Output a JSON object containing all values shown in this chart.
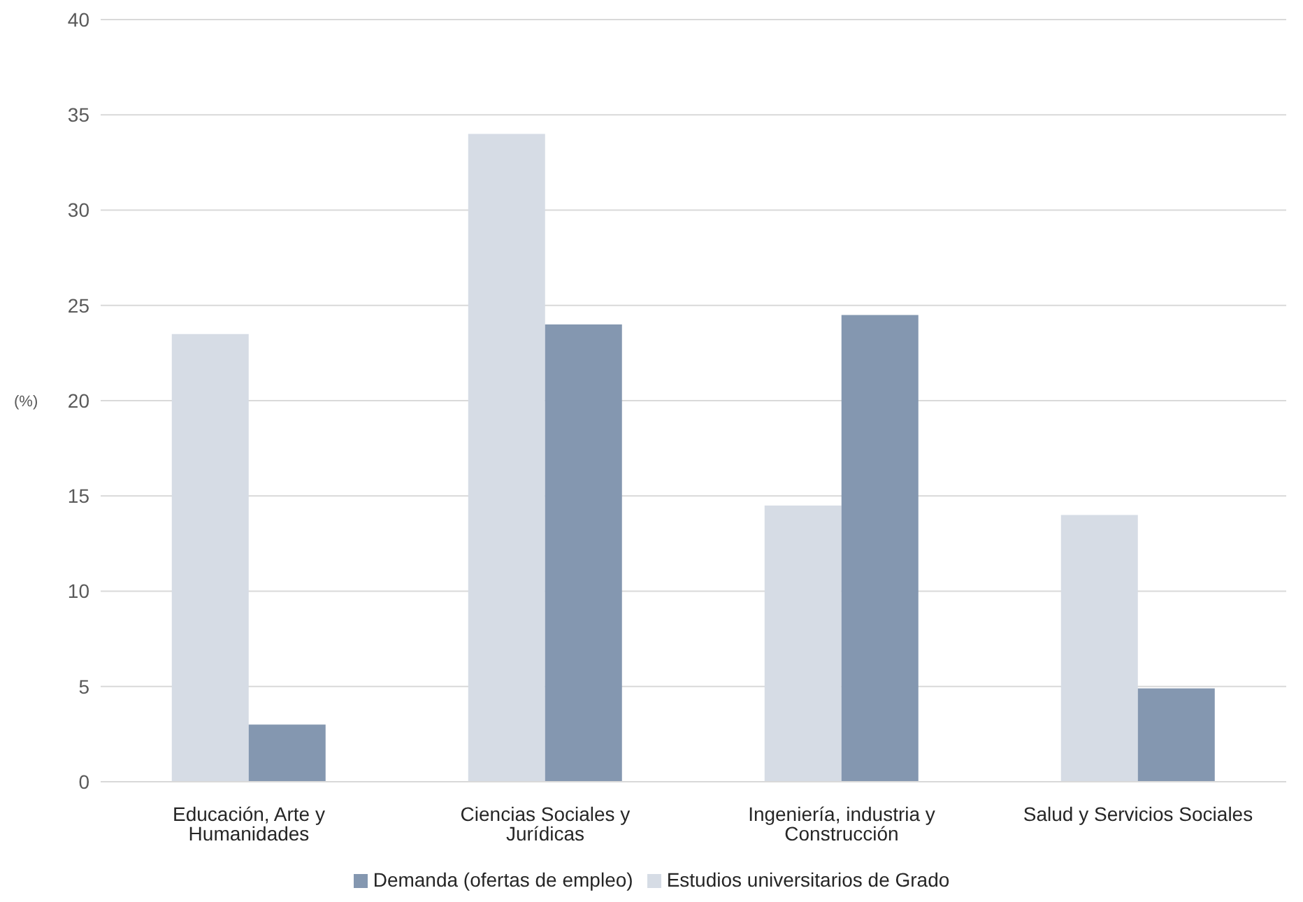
{
  "chart_data": {
    "type": "bar",
    "ylabel": "(%)",
    "categories": [
      "Educación, Arte y Humanidades",
      "Ciencias Sociales y Jurídicas",
      "Ingeniería, industria y Construcción",
      "Salud y Servicios Sociales"
    ],
    "series": [
      {
        "name": "Estudios universitarios de Grado",
        "color": "#d6dce5",
        "values": [
          23.5,
          34,
          14.5,
          14
        ]
      },
      {
        "name": "Demanda (ofertas de empleo)",
        "color": "#8497b0",
        "values": [
          3,
          24,
          24.5,
          4.9
        ]
      }
    ],
    "ylim": [
      0,
      40
    ],
    "yticks": [
      0,
      5,
      10,
      15,
      20,
      25,
      30,
      35,
      40
    ],
    "grid": "y",
    "legend": "bottom"
  }
}
